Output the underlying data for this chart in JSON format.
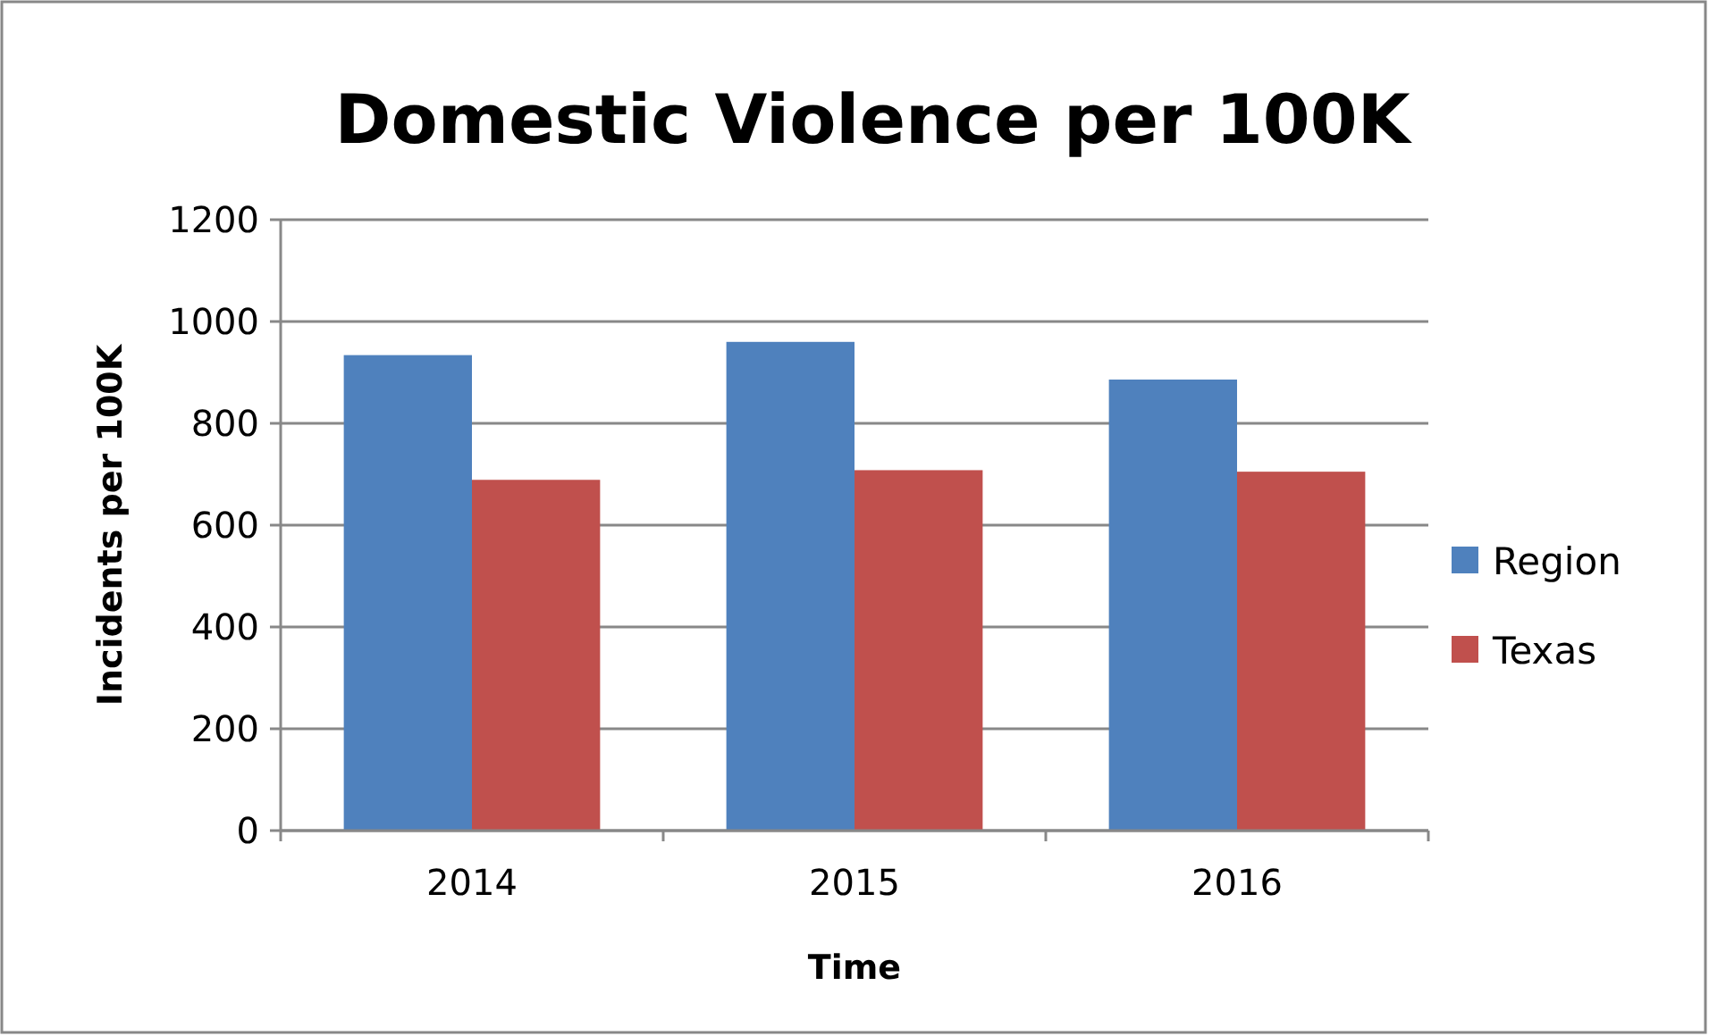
{
  "chart_data": {
    "type": "bar",
    "title": "Domestic Violence per 100K",
    "xlabel": "Time",
    "ylabel": "Incidents per 100K",
    "categories": [
      "2014",
      "2015",
      "2016"
    ],
    "series": [
      {
        "name": "Region",
        "color": "#4f81bd",
        "values": [
          934,
          960,
          886
        ]
      },
      {
        "name": "Texas",
        "color": "#c0504d",
        "values": [
          689,
          708,
          705
        ]
      }
    ],
    "ylim": [
      0,
      1200
    ],
    "yticks": [
      0,
      200,
      400,
      600,
      800,
      1000,
      1200
    ],
    "grid": "y",
    "legend": "right"
  }
}
